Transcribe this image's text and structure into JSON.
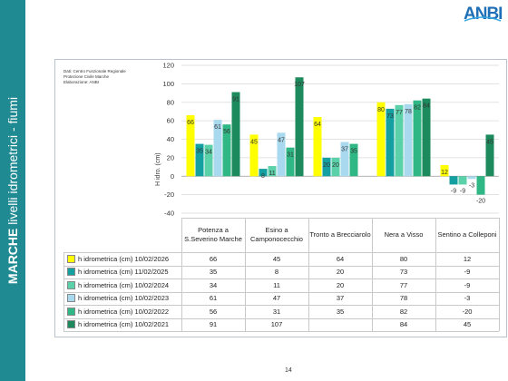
{
  "sidebar": {
    "bold": "MARCHE",
    "rest": " livelli idrometrici - fiumi"
  },
  "logo": {
    "text": "ANBI",
    "colors": [
      "#1e6fb5",
      "#3aa9e0"
    ]
  },
  "sources": [
    "Dati: Centro Funzionale Regionale",
    "Protezione Civile Marche",
    "Elaborazione: ANBI"
  ],
  "page_number": "14",
  "chart_data": {
    "type": "bar",
    "ylabel": "H idro. (cm)",
    "ylim": [
      -40,
      120
    ],
    "yticks": [
      -40,
      -20,
      0,
      20,
      40,
      60,
      80,
      100,
      120
    ],
    "grid": true,
    "legend": "table-left",
    "categories": [
      "Potenza a S.Severino Marche",
      "Esino a Camponocecchio",
      "Tronto a Brecciarolo",
      "Nera a Visso",
      "Sentino a Colleponi"
    ],
    "series": [
      {
        "name": "h idrometrica (cm) 10/02/2026",
        "color": "#ffff00",
        "values": [
          66,
          45,
          64,
          80,
          12
        ],
        "labels": [
          "66",
          "45",
          "64",
          "80",
          "12"
        ]
      },
      {
        "name": "h idrometrica (cm) 11/02/2025",
        "color": "#14a0a0",
        "values": [
          35,
          8,
          20,
          73,
          -9
        ],
        "labels": [
          "35",
          "8",
          "20",
          "73",
          "-9"
        ]
      },
      {
        "name": "h idrometrica (cm) 10/02/2024",
        "color": "#5ad1a8",
        "values": [
          34,
          11,
          20,
          77,
          -9
        ],
        "labels": [
          "34",
          "11",
          "20",
          "77",
          "-9"
        ]
      },
      {
        "name": "h idrometrica (cm) 10/02/2023",
        "color": "#a9d9ee",
        "values": [
          61,
          47,
          37,
          78,
          -3
        ],
        "labels": [
          "61",
          "47",
          "37",
          "78",
          "-3"
        ]
      },
      {
        "name": "h idrometrica (cm) 10/02/2022",
        "color": "#2fb885",
        "values": [
          56,
          31,
          35,
          82,
          -20
        ],
        "labels": [
          "56",
          "31",
          "35",
          "82",
          "-20"
        ]
      },
      {
        "name": "h idrometrica (cm) 10/02/2021",
        "color": "#1d8a5e",
        "values": [
          91,
          107,
          null,
          84,
          45
        ],
        "labels": [
          "91",
          "107",
          "",
          "84",
          "45"
        ]
      }
    ]
  }
}
